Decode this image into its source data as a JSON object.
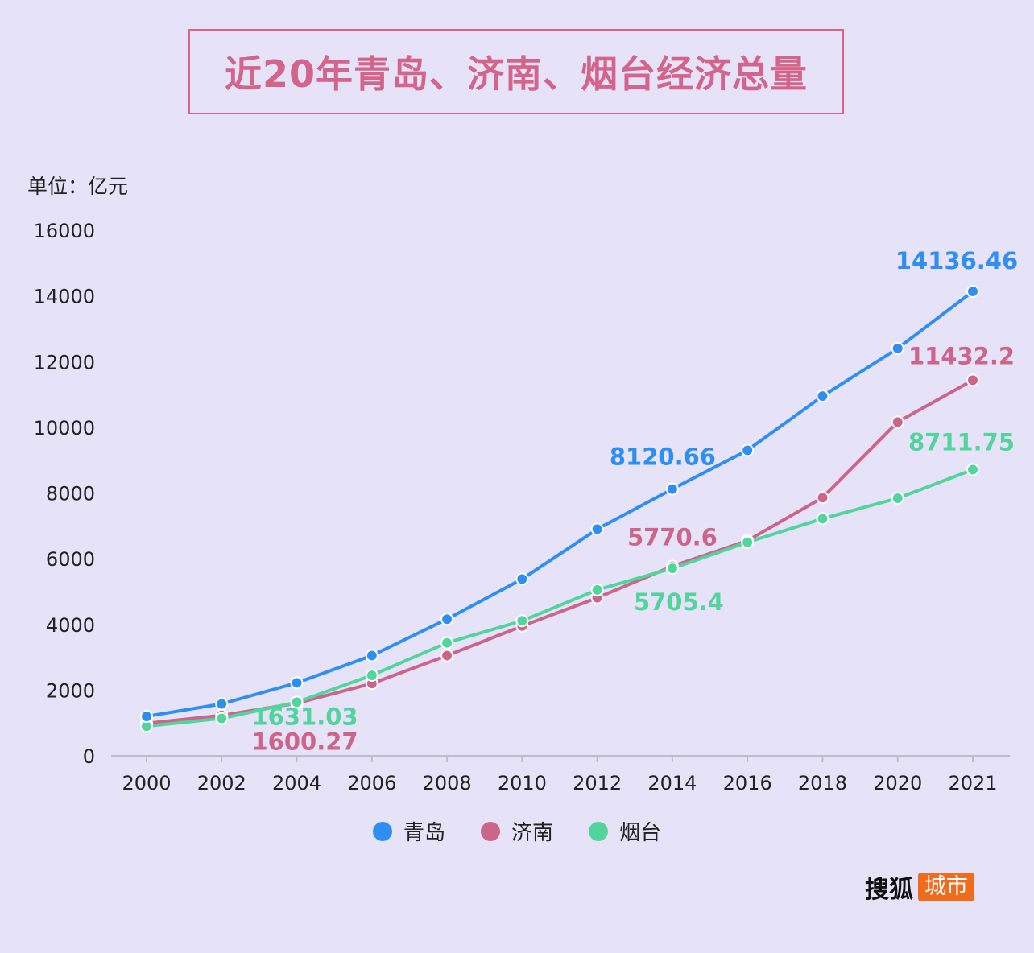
{
  "title": "近20年青岛、济南、烟台经济总量",
  "unit_label": "单位：亿元",
  "brand": {
    "name": "搜狐",
    "tag": "城市"
  },
  "legend": [
    {
      "name": "青岛",
      "color": "#2f8ff0"
    },
    {
      "name": "济南",
      "color": "#cc6589"
    },
    {
      "name": "烟台",
      "color": "#52d59c"
    }
  ],
  "chart_data": {
    "type": "line",
    "categories": [
      "2000",
      "2002",
      "2004",
      "2006",
      "2008",
      "2010",
      "2012",
      "2014",
      "2016",
      "2018",
      "2020",
      "2021"
    ],
    "ylim": [
      0,
      16000
    ],
    "yticks": [
      0,
      2000,
      4000,
      6000,
      8000,
      10000,
      12000,
      14000,
      16000
    ],
    "grid": false,
    "legend_position": "bottom",
    "series": [
      {
        "name": "青岛",
        "color": "#2f8ff0",
        "values": [
          1200,
          1580,
          2220,
          3050,
          4160,
          5380,
          6900,
          8120.66,
          9300,
          10950,
          12400,
          14136.46
        ]
      },
      {
        "name": "济南",
        "color": "#cc6589",
        "values": [
          990,
          1230,
          1600.27,
          2200,
          3050,
          3950,
          4810,
          5770.6,
          6550,
          7860,
          10160,
          11432.2
        ]
      },
      {
        "name": "烟台",
        "color": "#52d59c",
        "values": [
          900,
          1140,
          1631.03,
          2450,
          3440,
          4110,
          5050,
          5705.4,
          6500,
          7220,
          7840,
          8711.75
        ]
      }
    ],
    "annotations": [
      {
        "series": 0,
        "index": 7,
        "text": "8120.66"
      },
      {
        "series": 0,
        "index": 11,
        "text": "14136.46"
      },
      {
        "series": 1,
        "index": 2,
        "text": "1600.27"
      },
      {
        "series": 1,
        "index": 7,
        "text": "5770.6"
      },
      {
        "series": 1,
        "index": 11,
        "text": "11432.2"
      },
      {
        "series": 2,
        "index": 2,
        "text": "1631.03"
      },
      {
        "series": 2,
        "index": 7,
        "text": "5705.4"
      },
      {
        "series": 2,
        "index": 11,
        "text": "8711.75"
      }
    ]
  }
}
